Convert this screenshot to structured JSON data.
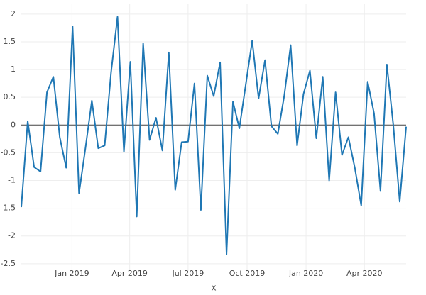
{
  "chart_data": {
    "type": "line",
    "xlabel": "x",
    "x": [
      "2018-10-14",
      "2018-10-24",
      "2018-11-03",
      "2018-11-13",
      "2018-11-23",
      "2018-12-03",
      "2018-12-13",
      "2018-12-23",
      "2019-01-02",
      "2019-01-12",
      "2019-01-22",
      "2019-02-01",
      "2019-02-11",
      "2019-02-21",
      "2019-03-03",
      "2019-03-13",
      "2019-03-23",
      "2019-04-02",
      "2019-04-12",
      "2019-04-22",
      "2019-05-02",
      "2019-05-12",
      "2019-05-22",
      "2019-06-01",
      "2019-06-11",
      "2019-06-21",
      "2019-07-01",
      "2019-07-11",
      "2019-07-21",
      "2019-07-31",
      "2019-08-10",
      "2019-08-20",
      "2019-08-30",
      "2019-09-09",
      "2019-09-19",
      "2019-09-29",
      "2019-10-09",
      "2019-10-19",
      "2019-10-29",
      "2019-11-08",
      "2019-11-18",
      "2019-11-28",
      "2019-12-08",
      "2019-12-18",
      "2019-12-28",
      "2020-01-07",
      "2020-01-17",
      "2020-01-27",
      "2020-02-06",
      "2020-02-16",
      "2020-02-26",
      "2020-03-07",
      "2020-03-17",
      "2020-03-27",
      "2020-04-06",
      "2020-04-16",
      "2020-04-26",
      "2020-05-06",
      "2020-05-16",
      "2020-05-26",
      "2020-06-05"
    ],
    "series": [
      {
        "color": "#1f77b4",
        "values": [
          -1.48,
          0.07,
          -0.76,
          -0.84,
          0.59,
          0.87,
          -0.22,
          -0.77,
          1.78,
          -1.23,
          -0.42,
          0.44,
          -0.42,
          -0.37,
          0.95,
          1.95,
          -0.48,
          1.14,
          -1.65,
          1.47,
          -0.27,
          0.13,
          -0.46,
          1.31,
          -1.17,
          -0.31,
          -0.3,
          0.75,
          -1.53,
          0.89,
          0.52,
          1.13,
          -2.33,
          0.42,
          -0.06,
          0.73,
          1.52,
          0.48,
          1.17,
          -0.02,
          -0.16,
          0.53,
          1.44,
          -0.37,
          0.56,
          0.98,
          -0.24,
          0.87,
          -1.0,
          0.59,
          -0.54,
          -0.22,
          -0.77,
          -1.45,
          0.78,
          0.21,
          -1.19,
          1.09,
          0.0,
          -1.38,
          -0.03
        ]
      }
    ],
    "xlim": [
      "2018-10-14",
      "2020-06-05"
    ],
    "xticks": [
      {
        "value": "2019-01-01",
        "label": "Jan 2019"
      },
      {
        "value": "2019-04-01",
        "label": "Apr 2019"
      },
      {
        "value": "2019-07-01",
        "label": "Jul 2019"
      },
      {
        "value": "2019-10-01",
        "label": "Oct 2019"
      },
      {
        "value": "2020-01-01",
        "label": "Jan 2020"
      },
      {
        "value": "2020-04-01",
        "label": "Apr 2020"
      }
    ],
    "ylim": [
      -2.63,
      2.19
    ],
    "yticks": [
      -2.5,
      -2,
      -1.5,
      -1,
      -0.5,
      0,
      0.5,
      1,
      1.5,
      2
    ],
    "grid": true,
    "zeroline": true
  }
}
